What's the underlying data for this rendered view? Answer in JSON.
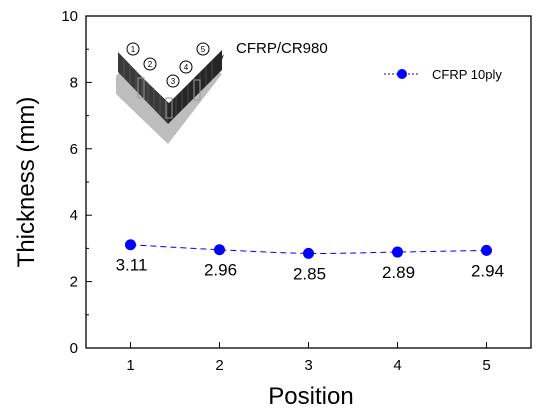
{
  "chart_data": {
    "type": "line",
    "title": "",
    "xlabel": "Position",
    "ylabel": "Thickness (mm)",
    "xlim": [
      0.5,
      5.5
    ],
    "ylim": [
      0,
      10
    ],
    "x_ticks": [
      1,
      2,
      3,
      4,
      5
    ],
    "y_ticks": [
      0,
      2,
      4,
      6,
      8,
      10
    ],
    "grid": false,
    "legend_placement": "top-right",
    "series": [
      {
        "name": "CFRP 10ply",
        "color": "#0000ff",
        "line_style": "dashed",
        "marker": "circle",
        "x": [
          1,
          2,
          3,
          4,
          5
        ],
        "y": [
          3.11,
          2.96,
          2.85,
          2.89,
          2.94
        ],
        "labels": [
          "3.11",
          "2.96",
          "2.85",
          "2.89",
          "2.94"
        ]
      }
    ],
    "annotations": [
      {
        "text": "CFRP/CR980"
      }
    ],
    "inset": {
      "description": "V-shaped specimen with measurement positions",
      "positions": [
        "1",
        "2",
        "3",
        "4",
        "5"
      ]
    }
  }
}
